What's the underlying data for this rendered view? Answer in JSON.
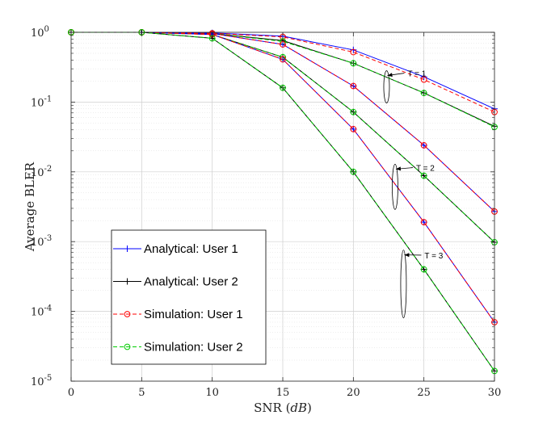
{
  "chart_data": {
    "type": "line",
    "title": "",
    "xlabel": "SNR",
    "xlabel_unit": "dB",
    "ylabel": "Average BLER",
    "x_ticks": [
      "0",
      "5",
      "10",
      "15",
      "20",
      "25",
      "30"
    ],
    "y_tick_mantissa": "10",
    "y_tick_exponents": [
      "0",
      "-1",
      "-2",
      "-3",
      "-4",
      "-5"
    ],
    "xlim": [
      0,
      30
    ],
    "ylim": [
      1e-05,
      1
    ],
    "y_scale": "log",
    "grid": true,
    "legend_position": "lower-left",
    "x": [
      0,
      5,
      10,
      15,
      20,
      25,
      30
    ],
    "series": [
      {
        "name": "Analytical: User 1",
        "group": "T = 1",
        "color": "#0000ff",
        "style": "solid",
        "marker": "plus",
        "values": [
          1,
          1,
          0.98,
          0.88,
          0.56,
          0.23,
          0.08
        ]
      },
      {
        "name": "Simulation: User 1",
        "group": "T = 1",
        "color": "#ff0000",
        "style": "dashed",
        "marker": "circle",
        "values": [
          1,
          1,
          0.97,
          0.86,
          0.52,
          0.21,
          0.072
        ]
      },
      {
        "name": "Analytical: User 2",
        "group": "T = 1",
        "color": "#000000",
        "style": "solid",
        "marker": "plus",
        "values": [
          1,
          1,
          0.96,
          0.76,
          0.36,
          0.135,
          0.045
        ]
      },
      {
        "name": "Simulation: User 2",
        "group": "T = 1",
        "color": "#00cc00",
        "style": "dashed",
        "marker": "circle",
        "values": [
          1,
          1,
          0.96,
          0.74,
          0.36,
          0.135,
          0.044
        ]
      },
      {
        "name": "Analytical: User 1",
        "group": "T = 2",
        "color": "#0000ff",
        "style": "solid",
        "marker": "plus",
        "values": [
          1,
          1,
          0.96,
          0.67,
          0.17,
          0.024,
          0.0027
        ]
      },
      {
        "name": "Simulation: User 1",
        "group": "T = 2",
        "color": "#ff0000",
        "style": "dashed",
        "marker": "circle",
        "values": [
          1,
          1,
          0.96,
          0.67,
          0.17,
          0.024,
          0.0027
        ]
      },
      {
        "name": "Analytical: User 2",
        "group": "T = 2",
        "color": "#000000",
        "style": "solid",
        "marker": "plus",
        "values": [
          1,
          1,
          0.93,
          0.44,
          0.072,
          0.0088,
          0.00098
        ]
      },
      {
        "name": "Simulation: User 2",
        "group": "T = 2",
        "color": "#00cc00",
        "style": "dashed",
        "marker": "circle",
        "values": [
          1,
          1,
          0.93,
          0.44,
          0.072,
          0.0088,
          0.00098
        ]
      },
      {
        "name": "Analytical: User 1",
        "group": "T = 3",
        "color": "#0000ff",
        "style": "solid",
        "marker": "plus",
        "values": [
          1,
          1,
          0.93,
          0.41,
          0.041,
          0.0019,
          7e-05
        ]
      },
      {
        "name": "Simulation: User 1",
        "group": "T = 3",
        "color": "#ff0000",
        "style": "dashed",
        "marker": "circle",
        "values": [
          1,
          1,
          0.93,
          0.41,
          0.041,
          0.0019,
          7e-05
        ]
      },
      {
        "name": "Analytical: User 2",
        "group": "T = 3",
        "color": "#000000",
        "style": "solid",
        "marker": "plus",
        "values": [
          1,
          1,
          0.82,
          0.16,
          0.01,
          0.0004,
          1.4e-05
        ]
      },
      {
        "name": "Simulation: User 2",
        "group": "T = 3",
        "color": "#00cc00",
        "style": "dashed",
        "marker": "circle",
        "values": [
          1,
          1,
          0.82,
          0.16,
          0.01,
          0.0004,
          1.4e-05
        ]
      }
    ],
    "legend": [
      {
        "label": "Analytical: User 1",
        "color": "#0000ff",
        "style": "solid",
        "marker": "plus"
      },
      {
        "label": "Analytical: User 2",
        "color": "#000000",
        "style": "solid",
        "marker": "plus"
      },
      {
        "label": "Simulation: User 1",
        "color": "#ff0000",
        "style": "dashed",
        "marker": "circle"
      },
      {
        "label": "Simulation: User 2",
        "color": "#00cc00",
        "style": "dashed",
        "marker": "circle"
      }
    ],
    "annotations": [
      {
        "text": "T = 1",
        "x": 23.5,
        "y": 0.26
      },
      {
        "text": "T = 2",
        "x": 24.1,
        "y": 0.0115
      },
      {
        "text": "T = 3",
        "x": 24.7,
        "y": 0.00064
      }
    ]
  }
}
